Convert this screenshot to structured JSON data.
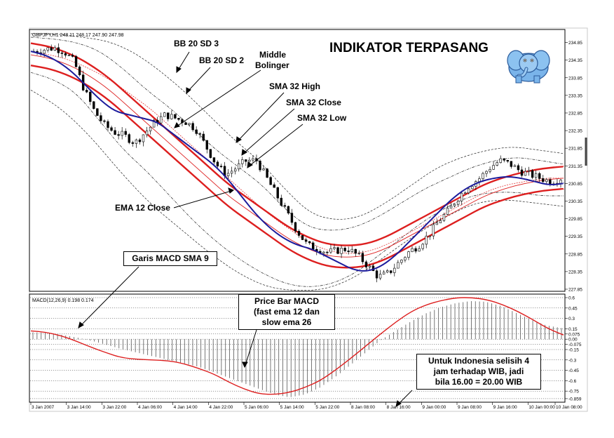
{
  "title": "INDIKATOR TERPASANG",
  "chart_data": {
    "type": "candlestick",
    "symbol_header": "GBPJPY,H1  248.11 248.17 247.90 247.98",
    "price_axis": {
      "range": [
        227.85,
        235.1
      ],
      "ticks": [
        "234.85",
        "234.35",
        "233.85",
        "233.35",
        "232.85",
        "232.35",
        "231.85",
        "231.35",
        "230.85",
        "230.35",
        "229.85",
        "229.35",
        "228.85",
        "228.35",
        "227.85"
      ]
    },
    "macd_header": "MACD(12,26,9) 0.198 0.174",
    "macd_axis": {
      "range": [
        -0.88,
        0.6
      ],
      "ticks": [
        "0.6",
        "0.45",
        "0.3",
        "0.15",
        "0.075",
        "0.00",
        "-0.075",
        "-0.15",
        "-0.3",
        "-0.45",
        "-0.6",
        "-0.75",
        "-0.859"
      ]
    },
    "time_labels": [
      "3 Jan 2007",
      "3 Jan 14:00",
      "3 Jan 22:00",
      "4 Jan 06:00",
      "4 Jan 14:00",
      "4 Jan 22:00",
      "5 Jan 06:00",
      "5 Jan 14:00",
      "5 Jan 22:00",
      "8 Jan 08:00",
      "8 Jan 16:00",
      "9 Jan 00:00",
      "9 Jan 08:00",
      "9 Jan 16:00",
      "10 Jan 00:00",
      "10 Jan 08:00"
    ],
    "close_path": [
      234.6,
      234.65,
      234.7,
      234.6,
      234.3,
      233.5,
      232.9,
      232.5,
      232.3,
      232.2,
      232.0,
      232.3,
      232.6,
      232.8,
      232.7,
      232.6,
      232.4,
      231.9,
      231.4,
      231.1,
      231.3,
      231.5,
      231.5,
      231.0,
      230.5,
      230.0,
      229.5,
      229.1,
      229.0,
      228.9,
      228.95,
      229.0,
      228.8,
      228.5,
      228.2,
      228.3,
      228.6,
      228.9,
      229.1,
      229.4,
      229.8,
      230.1,
      230.5,
      230.8,
      231.0,
      231.3,
      231.5,
      231.4,
      231.2,
      231.1,
      231.0,
      230.9,
      231.0
    ],
    "ema_12_path": [
      234.6,
      234.5,
      234.3,
      234.0,
      233.6,
      233.2,
      232.9,
      232.8,
      232.7,
      232.6,
      232.3,
      232.0,
      231.7,
      231.4,
      231.0,
      230.5,
      230.0,
      229.6,
      229.3,
      229.1,
      229.0,
      228.8,
      228.6,
      228.4,
      228.35,
      228.5,
      228.8,
      229.2,
      229.6,
      230.0,
      230.4,
      230.7,
      230.9,
      231.0,
      231.05,
      231.0,
      230.9,
      230.8,
      230.85
    ],
    "sma_32_close_path": [
      234.5,
      234.4,
      234.2,
      233.9,
      233.5,
      233.0,
      232.5,
      232.0,
      231.5,
      231.0,
      230.5,
      230.1,
      229.7,
      229.3,
      229.0,
      228.8,
      228.75,
      228.8,
      229.0,
      229.3,
      229.6,
      229.9,
      230.2,
      230.5,
      230.7,
      230.85,
      230.95,
      231.0
    ],
    "bollinger_mid_path": [
      234.6,
      234.5,
      234.35,
      234.1,
      233.8,
      233.4,
      233.0,
      232.5,
      232.0,
      231.5,
      231.0,
      230.5,
      230.0,
      229.6,
      229.2,
      228.95,
      228.85,
      228.9,
      229.1,
      229.4,
      229.7,
      230.0,
      230.3,
      230.6,
      230.8,
      230.9,
      231.0,
      231.0
    ],
    "bb_sd2_upper_path": [
      235.0,
      234.95,
      234.85,
      234.6,
      234.1,
      233.5,
      233.0,
      232.4,
      231.8,
      231.3,
      230.8,
      230.1,
      229.6,
      229.5,
      229.6,
      229.9,
      230.3,
      230.7,
      231.0,
      231.3,
      231.5,
      231.6,
      231.5,
      231.4
    ],
    "bb_sd2_lower_path": [
      234.0,
      233.8,
      233.4,
      232.6,
      231.8,
      231.2,
      230.5,
      229.8,
      229.2,
      228.7,
      228.3,
      228.0,
      227.9,
      228.0,
      228.3,
      228.8,
      229.3,
      229.8,
      230.2,
      230.5,
      230.6,
      230.6,
      230.5,
      230.5
    ],
    "bb_sd3_upper_path": [
      235.1,
      235.1,
      235.0,
      234.9,
      234.6,
      234.1,
      233.5,
      232.8,
      232.1,
      231.5,
      230.7,
      230.0,
      229.8,
      229.9,
      230.3,
      230.8,
      231.3,
      231.6,
      231.8,
      231.9,
      231.8,
      231.7
    ],
    "bb_sd3_lower_path": [
      233.5,
      233.0,
      232.2,
      231.2,
      230.3,
      229.6,
      228.9,
      228.3,
      227.9,
      227.8,
      227.85,
      228.2,
      228.8,
      229.4,
      229.9,
      230.3,
      230.4,
      230.3,
      230.2
    ],
    "macd_histogram_path": [
      0.1,
      0.09,
      0.06,
      0.02,
      -0.03,
      -0.09,
      -0.15,
      -0.2,
      -0.25,
      -0.3,
      -0.35,
      -0.4,
      -0.48,
      -0.56,
      -0.64,
      -0.72,
      -0.8,
      -0.84,
      -0.8,
      -0.7,
      -0.55,
      -0.38,
      -0.2,
      -0.02,
      0.12,
      0.25,
      0.37,
      0.46,
      0.52,
      0.55,
      0.54,
      0.48,
      0.38,
      0.28,
      0.2,
      0.16
    ],
    "macd_signal_path": [
      0.12,
      0.1,
      0.05,
      -0.03,
      -0.12,
      -0.2,
      -0.27,
      -0.29,
      -0.3,
      -0.31,
      -0.35,
      -0.42,
      -0.5,
      -0.62,
      -0.72,
      -0.79,
      -0.8,
      -0.77,
      -0.7,
      -0.6,
      -0.45,
      -0.28,
      -0.1,
      0.08,
      0.25,
      0.4,
      0.5,
      0.56,
      0.6,
      0.6,
      0.57,
      0.5,
      0.4,
      0.28,
      0.15,
      0.06
    ]
  },
  "annotations": {
    "bb20_sd3": "BB 20 SD 3",
    "bb20_sd2": "BB 20 SD 2",
    "middle_bol_1": "Middle",
    "middle_bol_2": "Bolinger",
    "sma32_high": "SMA 32 High",
    "sma32_close": "SMA 32 Close",
    "sma32_low": "SMA 32 Low",
    "ema12": "EMA 12 Close",
    "macd_sma9": "Garis MACD SMA 9",
    "price_bar_1": "Price Bar MACD",
    "price_bar_2": "(fast ema 12 dan",
    "price_bar_3": "slow ema 26",
    "indonesia_1": "Untuk Indonesia selisih 4",
    "indonesia_2": "jam terhadap WIB, jadi",
    "indonesia_3": "bila 16.00 = 20.00 WIB"
  },
  "colors": {
    "sma": "#dd1f1f",
    "ema": "#1c1c9c",
    "bollinger": "#222222",
    "macd_signal": "#dd1f1f"
  },
  "logo_icon": "elephant-icon"
}
